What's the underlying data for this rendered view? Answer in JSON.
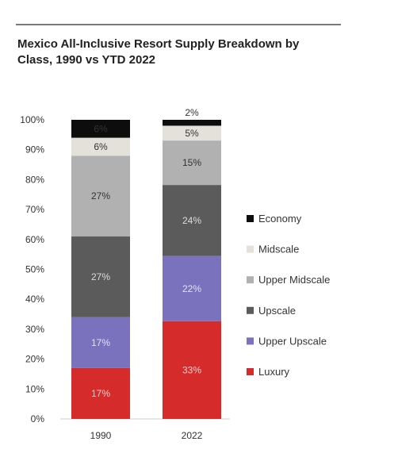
{
  "chart_data": {
    "type": "bar",
    "stacked": true,
    "title": "Mexico All-Inclusive Resort Supply Breakdown by Class, 1990 vs YTD 2022",
    "xlabel": "",
    "ylabel": "",
    "ylim": [
      0,
      100
    ],
    "y_ticks": [
      "0%",
      "10%",
      "20%",
      "30%",
      "40%",
      "50%",
      "60%",
      "70%",
      "80%",
      "90%",
      "100%"
    ],
    "categories": [
      "1990",
      "2022"
    ],
    "legend_position": "right",
    "series": [
      {
        "name": "Luxury",
        "color": "#d62b2b",
        "label_color": "#f2d0d0",
        "values": [
          17,
          33
        ],
        "labels": [
          "17%",
          "33%"
        ]
      },
      {
        "name": "Upper Upscale",
        "color": "#7b72bd",
        "label_color": "#e3e0f3",
        "values": [
          17,
          22
        ],
        "labels": [
          "17%",
          "22%"
        ]
      },
      {
        "name": "Upscale",
        "color": "#5b5b5b",
        "label_color": "#dcdcdc",
        "values": [
          27,
          24
        ],
        "labels": [
          "27%",
          "24%"
        ]
      },
      {
        "name": "Upper Midscale",
        "color": "#b1b1b1",
        "label_color": "#333333",
        "values": [
          27,
          15
        ],
        "labels": [
          "27%",
          "15%"
        ]
      },
      {
        "name": "Midscale",
        "color": "#e3e1da",
        "label_color": "#333333",
        "values": [
          6,
          5
        ],
        "labels": [
          "6%",
          "5%"
        ]
      },
      {
        "name": "Economy",
        "color": "#0d0d0d",
        "label_color": "#333333",
        "values": [
          6,
          2
        ],
        "labels": [
          "6%",
          "2%"
        ]
      }
    ],
    "legend_order": [
      "Economy",
      "Midscale",
      "Upper Midscale",
      "Upscale",
      "Upper Upscale",
      "Luxury"
    ]
  }
}
